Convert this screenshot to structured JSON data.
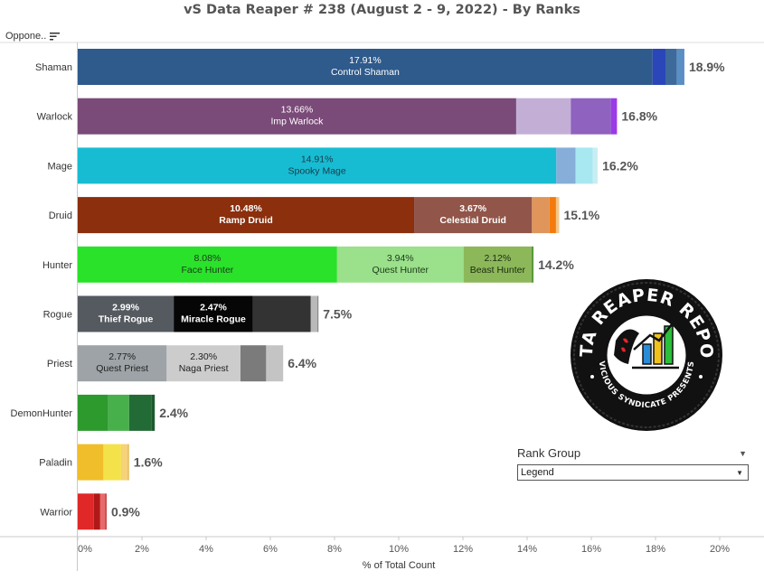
{
  "title": "vS Data Reaper #  238 (August 2 - 9, 2022) - By Ranks",
  "header": {
    "row_label": "Oppone.."
  },
  "rank_group": {
    "title": "Rank Group",
    "selected": "Legend"
  },
  "chart_data": {
    "type": "bar",
    "orientation": "horizontal",
    "stacked": true,
    "xlabel": "% of Total Count",
    "xlim": [
      0,
      20
    ],
    "xticks": [
      "0%",
      "2%",
      "4%",
      "6%",
      "8%",
      "10%",
      "12%",
      "14%",
      "16%",
      "18%",
      "20%"
    ],
    "grid": false,
    "categories": [
      "Shaman",
      "Warlock",
      "Mage",
      "Druid",
      "Hunter",
      "Rogue",
      "Priest",
      "DemonHunter",
      "Paladin",
      "Warrior"
    ],
    "totals": [
      "18.9%",
      "16.8%",
      "16.2%",
      "15.1%",
      "14.2%",
      "7.5%",
      "6.4%",
      "2.4%",
      "1.6%",
      "0.9%"
    ],
    "rows": [
      {
        "class": "Shaman",
        "total": 18.9,
        "segments": [
          {
            "value": 17.91,
            "pct": "17.91%",
            "name": "Control Shaman",
            "color": "#2e5a8c",
            "text_color": "#ffffff"
          },
          {
            "value": 0.4,
            "color": "#2b46b8"
          },
          {
            "value": 0.35,
            "color": "#3d6a9a"
          },
          {
            "value": 0.24,
            "color": "#5a8fc6"
          }
        ]
      },
      {
        "class": "Warlock",
        "total": 16.8,
        "segments": [
          {
            "value": 13.66,
            "pct": "13.66%",
            "name": "Imp Warlock",
            "color": "#7a4a78",
            "text_color": "#ffffff"
          },
          {
            "value": 1.7,
            "color": "#c3afd6"
          },
          {
            "value": 1.25,
            "color": "#8f62bf"
          },
          {
            "value": 0.19,
            "color": "#9b3be6"
          }
        ]
      },
      {
        "class": "Mage",
        "total": 16.2,
        "segments": [
          {
            "value": 14.91,
            "pct": "14.91%",
            "name": "Spooky Mage",
            "color": "#18bcd2",
            "text_color": "#1a3a4a"
          },
          {
            "value": 0.6,
            "color": "#86aed8"
          },
          {
            "value": 0.54,
            "color": "#a8e8f0"
          },
          {
            "value": 0.15,
            "color": "#c8eef4"
          }
        ]
      },
      {
        "class": "Druid",
        "total": 15.1,
        "segments": [
          {
            "value": 10.48,
            "pct": "10.48%",
            "name": "Ramp Druid",
            "color": "#8b2f0d",
            "text_color": "#ffffff"
          },
          {
            "value": 3.67,
            "pct": "3.67%",
            "name": "Celestial Druid",
            "color": "#915549",
            "text_color": "#ffffff"
          },
          {
            "value": 0.55,
            "color": "#e0955a"
          },
          {
            "value": 0.2,
            "color": "#f47a0e"
          },
          {
            "value": 0.1,
            "color": "#f3c68a"
          }
        ]
      },
      {
        "class": "Hunter",
        "total": 14.2,
        "segments": [
          {
            "value": 8.08,
            "pct": "8.08%",
            "name": "Face Hunter",
            "color": "#2be22b",
            "text_color": "#1a3a1a"
          },
          {
            "value": 3.94,
            "pct": "3.94%",
            "name": "Quest Hunter",
            "color": "#9be08a",
            "text_color": "#1a3a1a"
          },
          {
            "value": 2.12,
            "pct": "2.12%",
            "name": "Beast Hunter",
            "color": "#8cb85a",
            "text_color": "#1a2a10"
          },
          {
            "value": 0.06,
            "color": "#5a9a3a"
          }
        ]
      },
      {
        "class": "Rogue",
        "total": 7.5,
        "segments": [
          {
            "value": 2.99,
            "pct": "2.99%",
            "name": "Thief Rogue",
            "color": "#555a60",
            "text_color": "#ffffff"
          },
          {
            "value": 2.47,
            "pct": "2.47%",
            "name": "Miracle Rogue",
            "color": "#060606",
            "text_color": "#ffffff"
          },
          {
            "value": 1.8,
            "color": "#333333"
          },
          {
            "value": 0.2,
            "color": "#b9b9b9"
          },
          {
            "value": 0.04,
            "color": "#8a8a8a"
          }
        ]
      },
      {
        "class": "Priest",
        "total": 6.4,
        "segments": [
          {
            "value": 2.77,
            "pct": "2.77%",
            "name": "Quest Priest",
            "color": "#9da3a6",
            "text_color": "#222222"
          },
          {
            "value": 2.3,
            "pct": "2.30%",
            "name": "Naga Priest",
            "color": "#cccccc",
            "text_color": "#222222"
          },
          {
            "value": 0.8,
            "color": "#7b7b7b"
          },
          {
            "value": 0.53,
            "color": "#c4c4c4"
          }
        ]
      },
      {
        "class": "DemonHunter",
        "total": 2.4,
        "segments": [
          {
            "value": 0.95,
            "color": "#2d9a2d"
          },
          {
            "value": 0.65,
            "color": "#47b04a"
          },
          {
            "value": 0.7,
            "color": "#236b36"
          },
          {
            "value": 0.1,
            "color": "#1d5a2e"
          }
        ]
      },
      {
        "class": "Paladin",
        "total": 1.6,
        "segments": [
          {
            "value": 0.8,
            "color": "#f0be2a"
          },
          {
            "value": 0.55,
            "color": "#f4e24a"
          },
          {
            "value": 0.2,
            "color": "#f6d27a"
          },
          {
            "value": 0.05,
            "color": "#e8c060"
          }
        ]
      },
      {
        "class": "Warrior",
        "total": 0.9,
        "segments": [
          {
            "value": 0.5,
            "color": "#e02828"
          },
          {
            "value": 0.2,
            "color": "#b01818"
          },
          {
            "value": 0.15,
            "color": "#e86a6a"
          },
          {
            "value": 0.05,
            "color": "#c04040"
          }
        ]
      }
    ]
  },
  "logo": {
    "text_top": "DATA REAPER REPORT",
    "text_bottom": "VICIOUS SYNDICATE PRESENTS",
    "colors": {
      "ring": "#111111",
      "ring_text": "#ffffff",
      "bars": [
        "#2a8bd6",
        "#f1c21b",
        "#2bbf3a"
      ]
    }
  }
}
